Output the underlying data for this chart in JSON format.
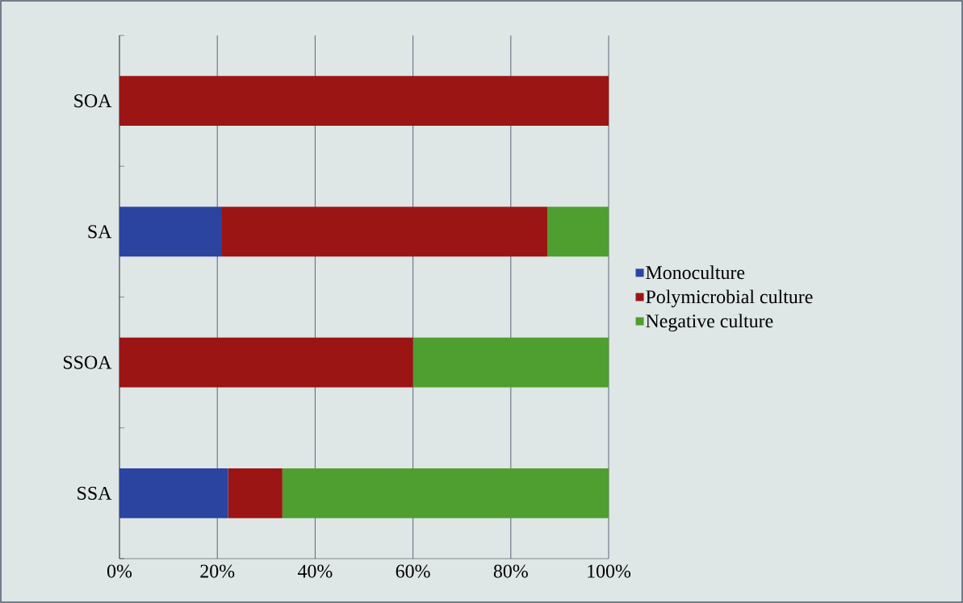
{
  "chart_data": {
    "type": "bar",
    "orientation": "horizontal",
    "stacked": true,
    "categories": [
      "SOA",
      "SA",
      "SSOA",
      "SSA"
    ],
    "series": [
      {
        "name": "Monoculture",
        "color": "#2a44a0",
        "values": [
          0,
          20.8,
          0,
          22.2
        ]
      },
      {
        "name": "Polymicrobial culture",
        "color": "#9b1515",
        "values": [
          100,
          66.7,
          60,
          11.1
        ]
      },
      {
        "name": "Negative culture",
        "color": "#4f9e30",
        "values": [
          0,
          12.5,
          40,
          66.7
        ]
      }
    ],
    "xlim": [
      0,
      100
    ],
    "xticks": [
      {
        "value": 0,
        "label": "0%"
      },
      {
        "value": 20,
        "label": "20%"
      },
      {
        "value": 40,
        "label": "40%"
      },
      {
        "value": 60,
        "label": "60%"
      },
      {
        "value": 80,
        "label": "80%"
      },
      {
        "value": 100,
        "label": "100%"
      }
    ],
    "grid": "x",
    "legend": "right"
  }
}
